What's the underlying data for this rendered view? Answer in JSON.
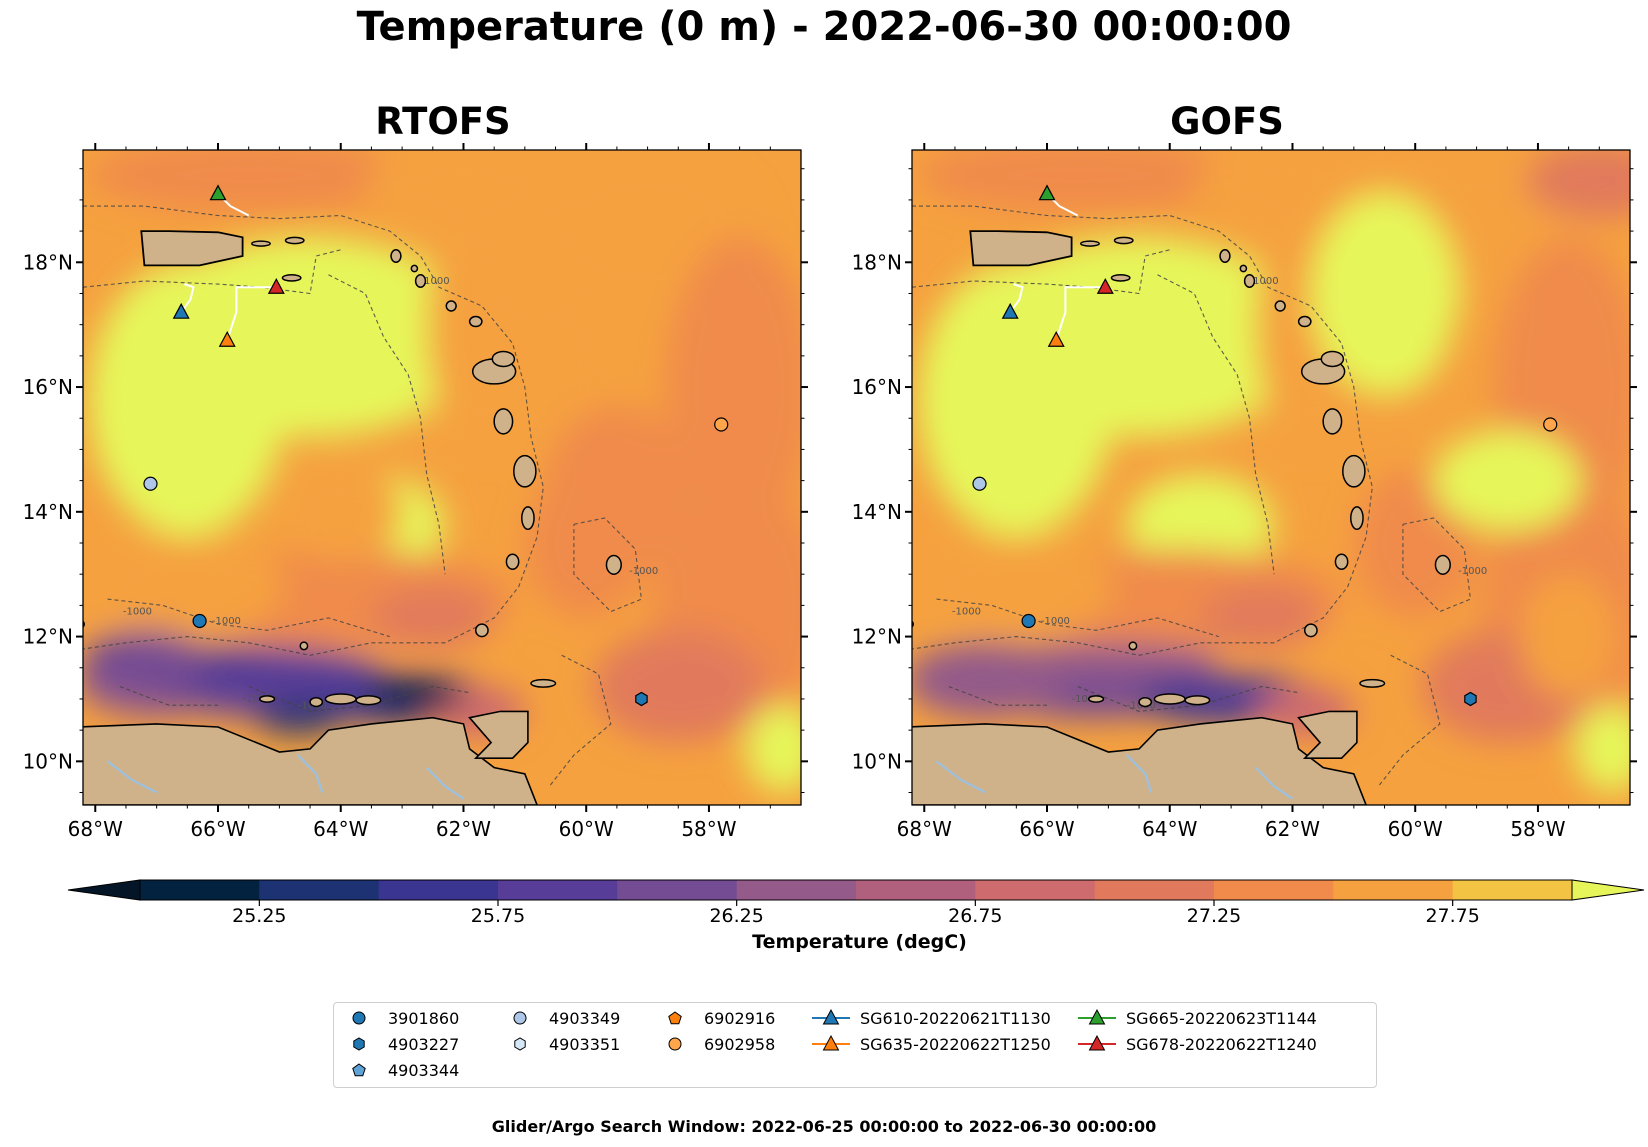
{
  "figure": {
    "suptitle": "Temperature (0 m) - 2022-06-30 00:00:00",
    "footer": "Glider/Argo Search Window: 2022-06-25 00:00:00 to 2022-06-30 00:00:00"
  },
  "panels": [
    {
      "title": "RTOFS",
      "model": "rtofs"
    },
    {
      "title": "GOFS",
      "model": "gofs"
    }
  ],
  "axes": {
    "lon_range": [
      -68.2,
      -56.5
    ],
    "lat_range": [
      9.3,
      19.8
    ],
    "x_ticks": [
      {
        "value": -68,
        "label": "68°W"
      },
      {
        "value": -66,
        "label": "66°W"
      },
      {
        "value": -64,
        "label": "64°W"
      },
      {
        "value": -62,
        "label": "62°W"
      },
      {
        "value": -60,
        "label": "60°W"
      },
      {
        "value": -58,
        "label": "58°W"
      }
    ],
    "y_ticks": [
      {
        "value": 10,
        "label": "10°N"
      },
      {
        "value": 12,
        "label": "12°N"
      },
      {
        "value": 14,
        "label": "14°N"
      },
      {
        "value": 16,
        "label": "16°N"
      },
      {
        "value": 18,
        "label": "18°N"
      }
    ]
  },
  "colorbar": {
    "label": "Temperature (degC)",
    "levels": [
      25.0,
      25.25,
      25.5,
      25.75,
      26.0,
      26.25,
      26.5,
      26.75,
      27.0,
      27.25,
      27.5,
      27.75,
      28.0
    ],
    "tick_labels": [
      "25.25",
      "25.75",
      "26.25",
      "26.75",
      "27.25",
      "27.75"
    ],
    "colors": [
      "#03223f",
      "#1d3273",
      "#3a3591",
      "#573d97",
      "#744c93",
      "#935a8a",
      "#b0607d",
      "#cd6b6e",
      "#e17a5c",
      "#f08b4b",
      "#f5a13f",
      "#f3c444"
    ],
    "under_color": "#041527",
    "over_color": "#e6f65a"
  },
  "map_colors": {
    "land": "#cfb28a",
    "water_inland": "#9cc1e0",
    "contour": "#444444",
    "track": "#ffffff"
  },
  "isobath_label": "-1000",
  "argo_floats": [
    {
      "id": "3901860",
      "lon": -66.3,
      "lat": 12.25,
      "color": "#1f77b4",
      "marker": "circle"
    },
    {
      "id": "4903227",
      "lon": -59.1,
      "lat": 11.0,
      "color": "#1f77b4",
      "marker": "hexagon"
    },
    {
      "id": "4903344",
      "lon": null,
      "lat": null,
      "color": "#5fa3d6",
      "marker": "pentagon"
    },
    {
      "id": "4903349",
      "lon": -67.1,
      "lat": 14.45,
      "color": "#aec7e8",
      "marker": "circle"
    },
    {
      "id": "4903351",
      "lon": null,
      "lat": null,
      "color": "#d6e8f7",
      "marker": "hexagon"
    },
    {
      "id": "6902916",
      "lon": null,
      "lat": null,
      "color": "#ff7f0e",
      "marker": "pentagon"
    },
    {
      "id": "6902958",
      "lon": -57.8,
      "lat": 15.4,
      "color": "#ffa64d",
      "marker": "circle"
    }
  ],
  "gliders": [
    {
      "id": "SG610-20220621T1130",
      "lon": -66.6,
      "lat": 17.2,
      "color": "#1f77b4",
      "track": [
        [
          -66.6,
          17.2
        ],
        [
          -66.45,
          17.4
        ],
        [
          -66.4,
          17.6
        ],
        [
          -66.55,
          17.65
        ]
      ]
    },
    {
      "id": "SG635-20220622T1250",
      "lon": -65.85,
      "lat": 16.75,
      "color": "#ff7f0e",
      "track": [
        [
          -65.85,
          16.75
        ],
        [
          -65.7,
          17.2
        ],
        [
          -65.7,
          17.6
        ],
        [
          -65.1,
          17.6
        ]
      ]
    },
    {
      "id": "SG665-20220623T1144",
      "lon": -66.0,
      "lat": 19.1,
      "color": "#2ca02c",
      "track": [
        [
          -66.0,
          19.1
        ],
        [
          -65.8,
          18.9
        ],
        [
          -65.5,
          18.75
        ]
      ]
    },
    {
      "id": "SG678-20220622T1240",
      "lon": -65.05,
      "lat": 17.6,
      "color": "#d62728",
      "track": [
        [
          -65.05,
          17.6
        ],
        [
          -65.1,
          17.6
        ]
      ]
    }
  ],
  "legend": {
    "columns": [
      [
        "3901860",
        "4903227",
        "4903344"
      ],
      [
        "4903349",
        "4903351"
      ],
      [
        "6902916",
        "6902958"
      ],
      [
        "SG610-20220621T1130",
        "SG635-20220622T1250"
      ],
      [
        "SG665-20220623T1144",
        "SG678-20220622T1240"
      ]
    ]
  }
}
